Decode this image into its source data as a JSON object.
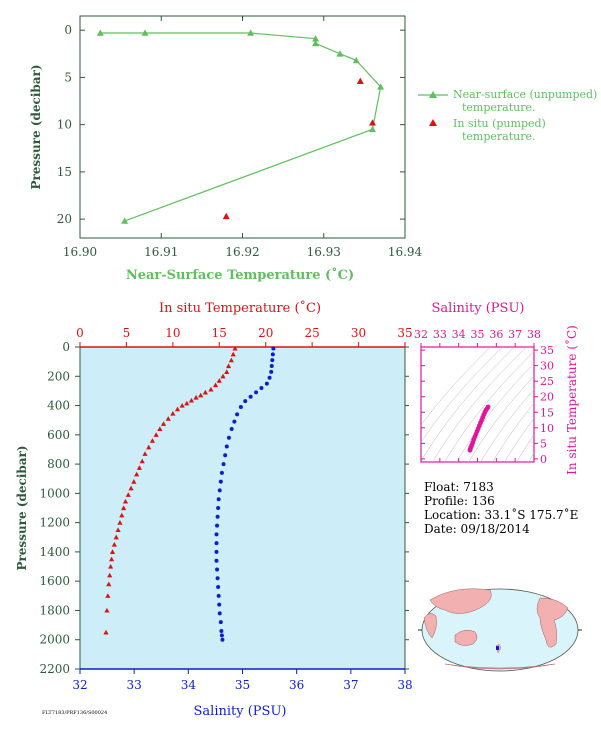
{
  "colors": {
    "green": "#5fbf5f",
    "red": "#dd1111",
    "blue": "#0a1fd0",
    "magenta": "#e0169a",
    "panel_bg": "#cdeef8",
    "axis_green": "#2f5a3a",
    "ocean": "#d9f4fb",
    "land": "#f3b0b0"
  },
  "top_chart": {
    "ylabel": "Pressure (decibar)",
    "xlabel": "Near-Surface Temperature (˚C)",
    "x_ticks": [
      "16.90",
      "16.91",
      "16.92",
      "16.93",
      "16.94"
    ],
    "y_ticks": [
      "0",
      "5",
      "10",
      "15",
      "20"
    ],
    "legend_unpumped": [
      "Near-surface (unpumped)",
      "temperature."
    ],
    "legend_pumped": [
      "In situ (pumped)",
      "temperature."
    ]
  },
  "main_chart": {
    "top_label": "In situ Temperature (˚C)",
    "bottom_label": "Salinity (PSU)",
    "ylabel": "Pressure (decibar)",
    "temp_ticks": [
      "0",
      "5",
      "10",
      "15",
      "20",
      "25",
      "30",
      "35"
    ],
    "sal_ticks": [
      "32",
      "33",
      "34",
      "35",
      "36",
      "37",
      "38"
    ],
    "p_ticks": [
      "0",
      "200",
      "400",
      "600",
      "800",
      "1000",
      "1200",
      "1400",
      "1600",
      "1800",
      "2000",
      "2200"
    ]
  },
  "ts_chart": {
    "title": "Salinity (PSU)",
    "ylabel": "In situ Temperature (˚C)",
    "x_ticks": [
      "32",
      "33",
      "34",
      "35",
      "36",
      "37",
      "38"
    ],
    "y_ticks": [
      "0",
      "5",
      "10",
      "15",
      "20",
      "25",
      "30",
      "35"
    ]
  },
  "info": {
    "float": "Float:  7183",
    "profile": "Profile:  136",
    "location": "Location:  33.1˚S  175.7˚E",
    "date": "Date:  09/18/2014"
  },
  "footer": "FLT7183/PRF136/S00024",
  "chart_data": [
    {
      "type": "line",
      "ylabel": "Pressure (decibar)",
      "xlabel": "Near-Surface Temperature (˚C)",
      "xlim": [
        16.9,
        16.94
      ],
      "ylim": [
        22,
        -1.5
      ],
      "series": [
        {
          "name": "Near-surface (unpumped) temperature.",
          "x": [
            16.9025,
            16.908,
            16.921,
            16.929,
            16.929,
            16.932,
            16.934,
            16.937,
            16.936,
            16.9055
          ],
          "y": [
            0.3,
            0.3,
            0.3,
            0.9,
            1.4,
            2.5,
            3.2,
            6.0,
            10.5,
            20.2
          ]
        },
        {
          "name": "In situ (pumped) temperature.",
          "x": [
            16.9345,
            16.936,
            16.918
          ],
          "y": [
            5.4,
            9.8,
            19.7
          ]
        }
      ]
    },
    {
      "type": "scatter",
      "xlabel": "Salinity (PSU)",
      "x2label": "In situ Temperature (˚C)",
      "ylabel": "Pressure (decibar)",
      "xlim": [
        32,
        38
      ],
      "x2lim": [
        0,
        35
      ],
      "ylim": [
        2200,
        0
      ],
      "series": [
        {
          "name": "In situ Temperature (˚C)",
          "x": [
            16.7,
            16.5,
            16.3,
            16.0,
            15.8,
            15.4,
            15.0,
            14.6,
            14.1,
            13.5,
            13.0,
            12.5,
            12.0,
            11.5,
            11.0,
            10.5,
            10.0,
            9.5,
            9.0,
            8.6,
            8.2,
            7.8,
            7.4,
            7.0,
            6.7,
            6.4,
            6.1,
            5.8,
            5.5,
            5.2,
            4.9,
            4.7,
            4.5,
            4.3,
            4.1,
            3.9,
            3.7,
            3.5,
            3.4,
            3.3,
            3.2,
            3.1,
            3.0,
            2.9,
            2.8
          ],
          "y": [
            10,
            50,
            90,
            130,
            170,
            200,
            230,
            260,
            290,
            310,
            330,
            345,
            365,
            385,
            400,
            425,
            455,
            490,
            525,
            560,
            600,
            640,
            685,
            730,
            780,
            825,
            870,
            920,
            965,
            1010,
            1055,
            1100,
            1150,
            1200,
            1250,
            1300,
            1350,
            1400,
            1450,
            1500,
            1560,
            1620,
            1700,
            1800,
            1950
          ]
        },
        {
          "name": "Salinity (PSU)",
          "x": [
            35.57,
            35.56,
            35.55,
            35.54,
            35.53,
            35.5,
            35.45,
            35.35,
            35.25,
            35.15,
            35.05,
            34.97,
            34.9,
            34.85,
            34.8,
            34.75,
            34.71,
            34.68,
            34.65,
            34.62,
            34.6,
            34.58,
            34.56,
            34.55,
            34.54,
            34.53,
            34.52,
            34.52,
            34.52,
            34.52,
            34.53,
            34.54,
            34.55,
            34.56,
            34.57,
            34.58,
            34.6,
            34.61,
            34.62,
            34.63
          ],
          "y": [
            10,
            50,
            90,
            130,
            170,
            210,
            250,
            280,
            310,
            340,
            370,
            410,
            460,
            510,
            560,
            620,
            680,
            740,
            800,
            860,
            920,
            980,
            1040,
            1100,
            1160,
            1220,
            1280,
            1340,
            1400,
            1460,
            1520,
            1580,
            1640,
            1700,
            1760,
            1820,
            1880,
            1940,
            1970,
            2000
          ]
        }
      ]
    },
    {
      "type": "scatter",
      "xlabel": "Salinity (PSU)",
      "ylabel": "In situ Temperature (˚C)",
      "xlim": [
        32,
        38
      ],
      "ylim": [
        -1,
        36
      ],
      "series": [
        {
          "x": [
            34.6,
            34.62,
            34.65,
            34.7,
            34.75,
            34.8,
            34.86,
            34.92,
            34.98,
            35.04,
            35.1,
            35.16,
            35.22,
            35.28,
            35.34,
            35.4,
            35.46,
            35.52,
            35.56
          ],
          "y": [
            2.8,
            3.2,
            3.8,
            4.5,
            5.3,
            6.2,
            7.1,
            8.0,
            8.9,
            9.8,
            10.7,
            11.6,
            12.5,
            13.4,
            14.3,
            15.1,
            15.8,
            16.3,
            16.7
          ]
        }
      ]
    }
  ]
}
